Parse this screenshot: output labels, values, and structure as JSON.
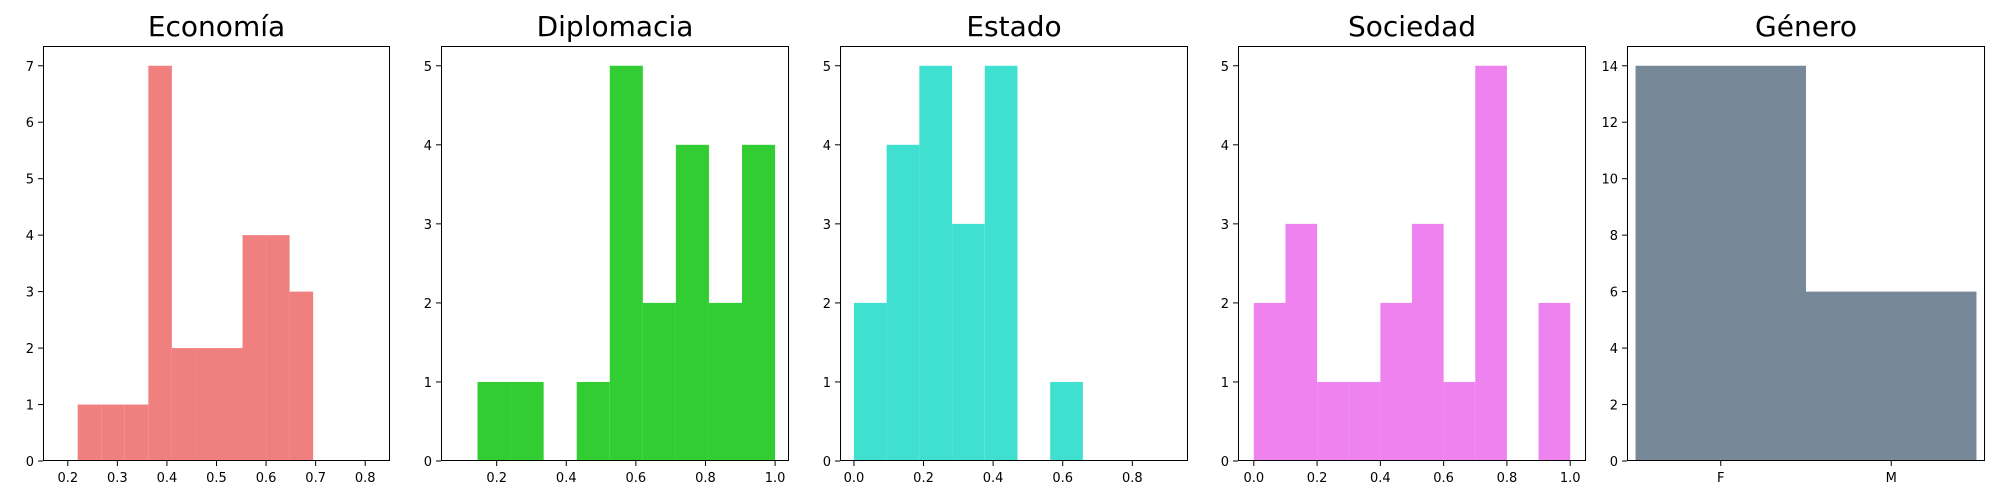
{
  "chart_data": [
    {
      "type": "bar",
      "title": "Economía",
      "color": "#f08080",
      "xlim": [
        0.15,
        0.85
      ],
      "ylim": [
        0,
        7.35
      ],
      "xticks": [
        "0.2",
        "0.3",
        "0.4",
        "0.5",
        "0.6",
        "0.7",
        "0.8"
      ],
      "yticks": [
        "0",
        "1",
        "2",
        "3",
        "4",
        "5",
        "6",
        "7"
      ],
      "bins": [
        {
          "x0": 0.22,
          "x1": 0.2675,
          "value": 1
        },
        {
          "x0": 0.2675,
          "x1": 0.315,
          "value": 1
        },
        {
          "x0": 0.315,
          "x1": 0.3625,
          "value": 1
        },
        {
          "x0": 0.3625,
          "x1": 0.41,
          "value": 7
        },
        {
          "x0": 0.41,
          "x1": 0.4575,
          "value": 2
        },
        {
          "x0": 0.4575,
          "x1": 0.505,
          "value": 2
        },
        {
          "x0": 0.505,
          "x1": 0.5525,
          "value": 2
        },
        {
          "x0": 0.5525,
          "x1": 0.6,
          "value": 4
        },
        {
          "x0": 0.6,
          "x1": 0.6475,
          "value": 4
        },
        {
          "x0": 0.6475,
          "x1": 0.695,
          "value": 3
        }
      ]
    },
    {
      "type": "bar",
      "title": "Diplomacia",
      "color": "#32cd32",
      "xlim": [
        0.04,
        1.04
      ],
      "ylim": [
        0,
        5.25
      ],
      "xticks": [
        "0.2",
        "0.4",
        "0.6",
        "0.8",
        "1.0"
      ],
      "yticks": [
        "0",
        "1",
        "2",
        "3",
        "4",
        "5"
      ],
      "bins": [
        {
          "x0": 0.145,
          "x1": 0.24,
          "value": 1
        },
        {
          "x0": 0.24,
          "x1": 0.335,
          "value": 1
        },
        {
          "x0": 0.43,
          "x1": 0.525,
          "value": 1
        },
        {
          "x0": 0.525,
          "x1": 0.62,
          "value": 5
        },
        {
          "x0": 0.62,
          "x1": 0.715,
          "value": 2
        },
        {
          "x0": 0.715,
          "x1": 0.81,
          "value": 4
        },
        {
          "x0": 0.81,
          "x1": 0.905,
          "value": 2
        },
        {
          "x0": 0.905,
          "x1": 1.0,
          "value": 4
        }
      ]
    },
    {
      "type": "bar",
      "title": "Estado",
      "color": "#40e0d0",
      "xlim": [
        -0.04,
        0.96
      ],
      "ylim": [
        0,
        5.25
      ],
      "xticks": [
        "0.0",
        "0.2",
        "0.4",
        "0.6",
        "0.8"
      ],
      "yticks": [
        "0",
        "1",
        "2",
        "3",
        "4",
        "5"
      ],
      "bins": [
        {
          "x0": 0.0,
          "x1": 0.094,
          "value": 2
        },
        {
          "x0": 0.094,
          "x1": 0.188,
          "value": 4
        },
        {
          "x0": 0.188,
          "x1": 0.282,
          "value": 5
        },
        {
          "x0": 0.282,
          "x1": 0.376,
          "value": 3
        },
        {
          "x0": 0.376,
          "x1": 0.47,
          "value": 5
        },
        {
          "x0": 0.564,
          "x1": 0.658,
          "value": 1
        }
      ]
    },
    {
      "type": "bar",
      "title": "Sociedad",
      "color": "#ee82ee",
      "xlim": [
        -0.05,
        1.05
      ],
      "ylim": [
        0,
        5.25
      ],
      "xticks": [
        "0.0",
        "0.2",
        "0.4",
        "0.6",
        "0.8",
        "1.0"
      ],
      "yticks": [
        "0",
        "1",
        "2",
        "3",
        "4",
        "5"
      ],
      "bins": [
        {
          "x0": 0.0,
          "x1": 0.1,
          "value": 2
        },
        {
          "x0": 0.1,
          "x1": 0.2,
          "value": 3
        },
        {
          "x0": 0.2,
          "x1": 0.3,
          "value": 1
        },
        {
          "x0": 0.3,
          "x1": 0.4,
          "value": 1
        },
        {
          "x0": 0.4,
          "x1": 0.5,
          "value": 2
        },
        {
          "x0": 0.5,
          "x1": 0.6,
          "value": 3
        },
        {
          "x0": 0.6,
          "x1": 0.7,
          "value": 1
        },
        {
          "x0": 0.7,
          "x1": 0.8,
          "value": 5
        },
        {
          "x0": 0.9,
          "x1": 1.0,
          "value": 2
        }
      ]
    },
    {
      "type": "bar",
      "title": "Género",
      "color": "#778899",
      "xlim": [
        -0.55,
        1.55
      ],
      "ylim": [
        0,
        14.7
      ],
      "xticks": [
        "F",
        "M"
      ],
      "yticks": [
        "0",
        "2",
        "4",
        "6",
        "8",
        "10",
        "12",
        "14"
      ],
      "bins": [
        {
          "x0": -0.5,
          "x1": 0.5,
          "value": 14
        },
        {
          "x0": 0.5,
          "x1": 1.5,
          "value": 6
        }
      ]
    }
  ]
}
